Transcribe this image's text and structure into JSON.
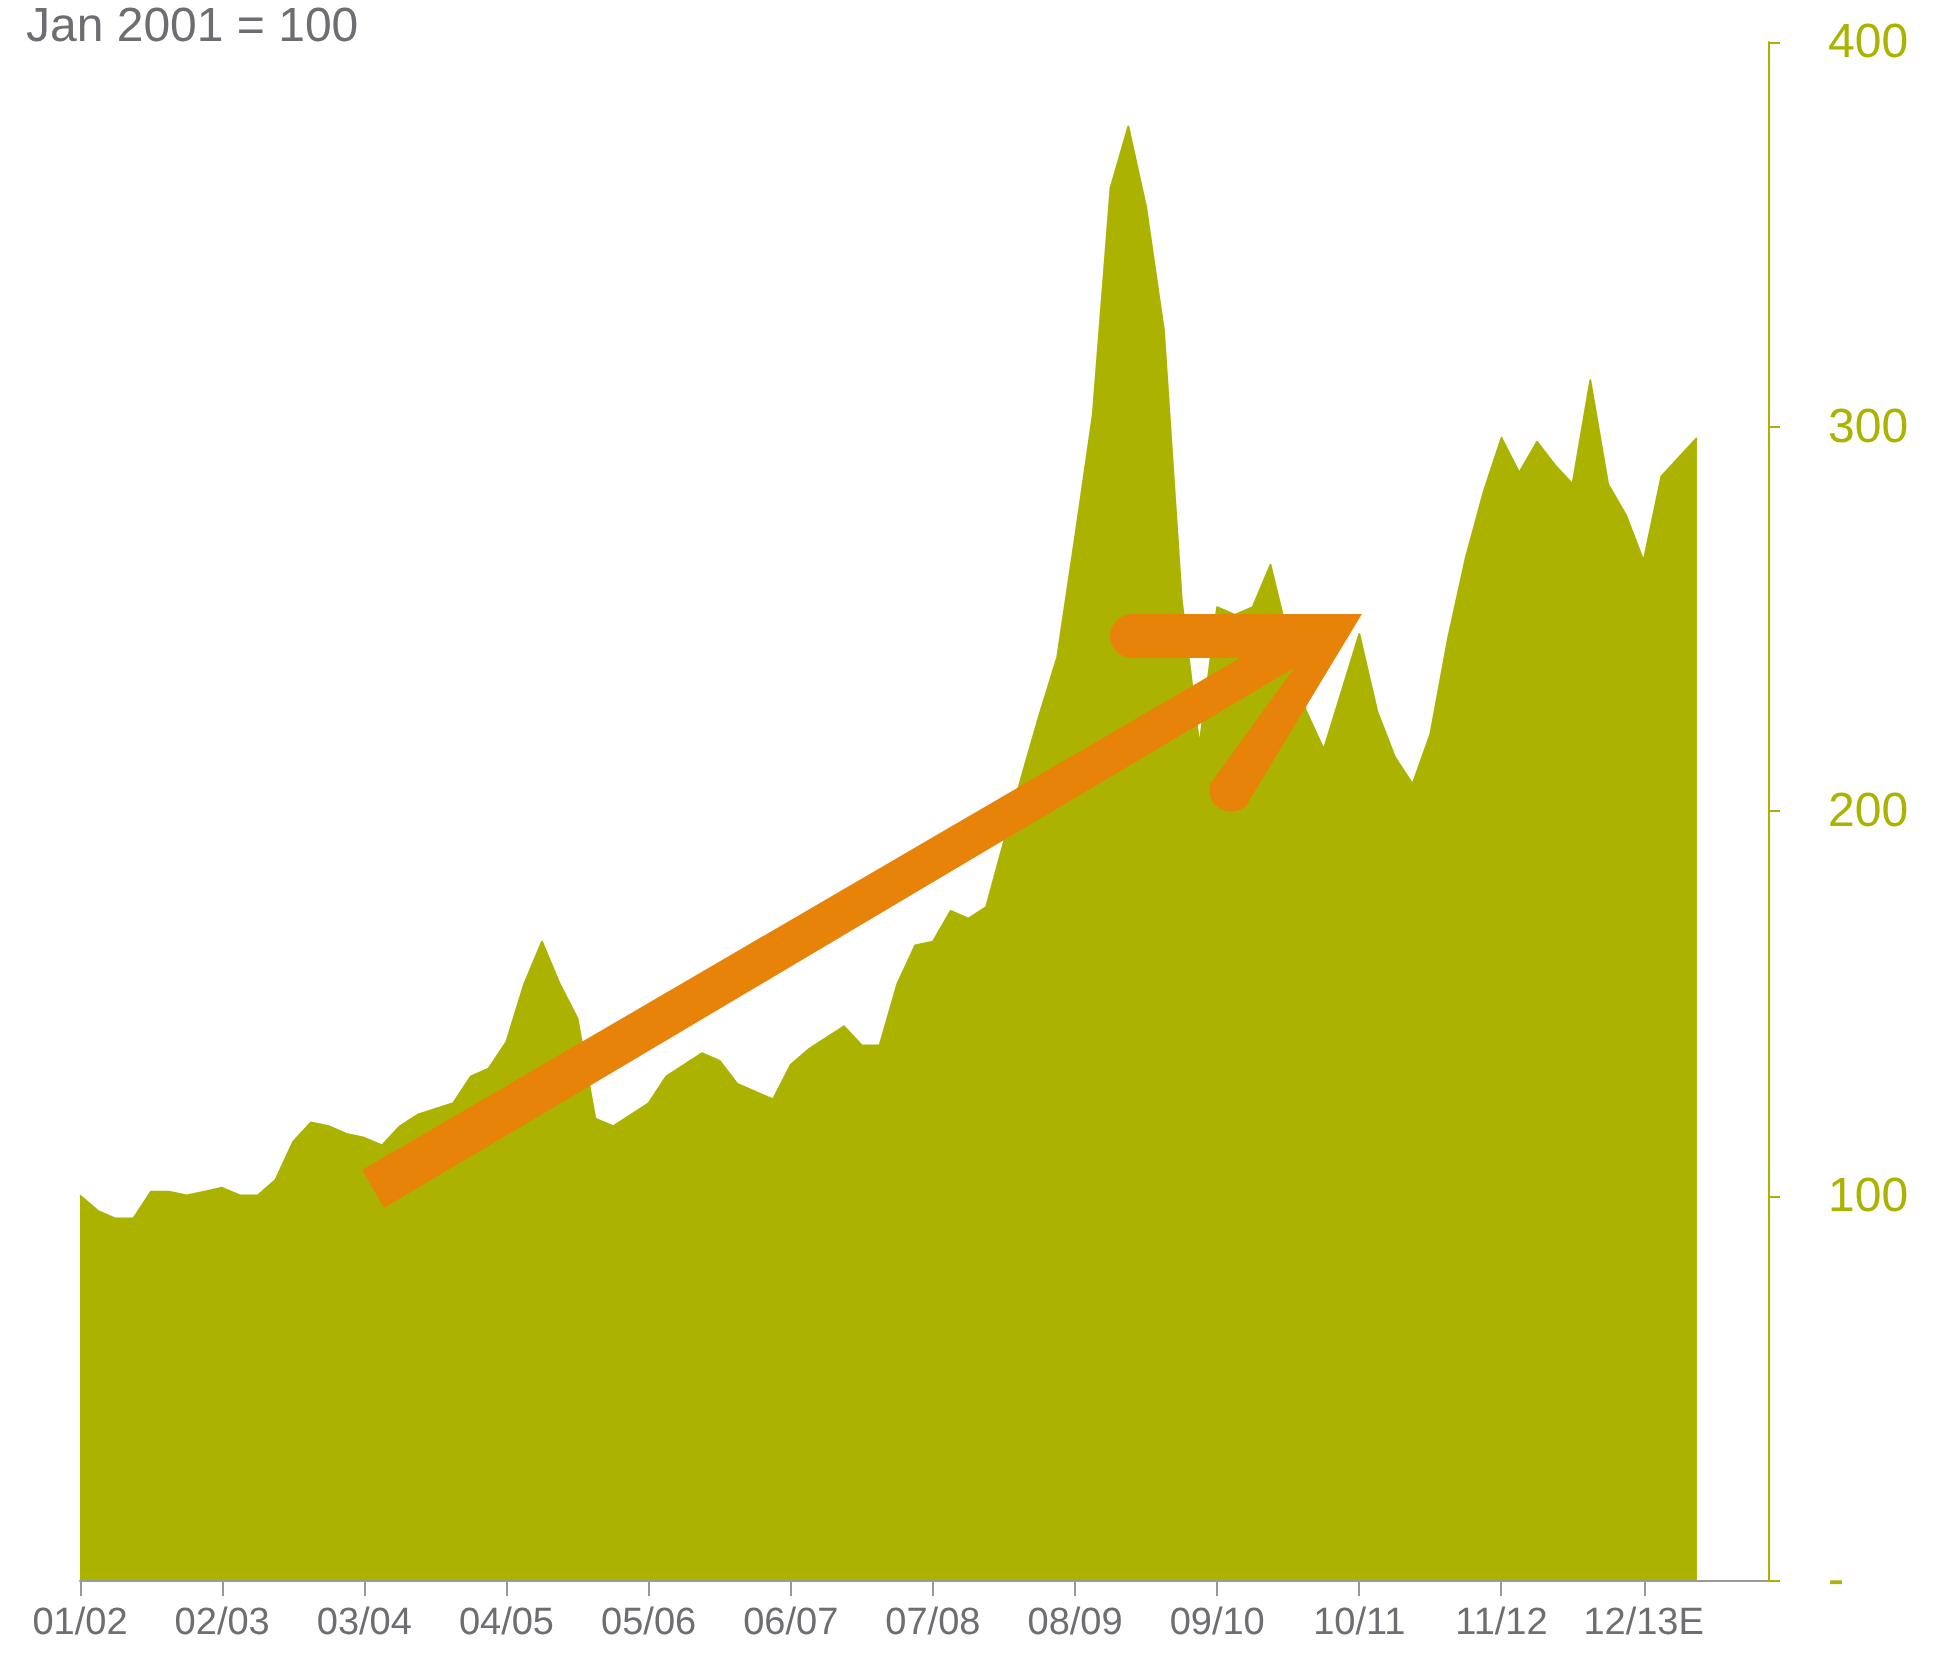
{
  "chart_data": {
    "type": "area",
    "title": "Jan 2001 = 100",
    "categories": [
      "01/02",
      null,
      null,
      null,
      null,
      null,
      null,
      null,
      "02/03",
      null,
      null,
      null,
      null,
      null,
      null,
      null,
      "03/04",
      null,
      null,
      null,
      null,
      null,
      null,
      null,
      "04/05",
      null,
      null,
      null,
      null,
      null,
      null,
      null,
      "05/06",
      null,
      null,
      null,
      null,
      null,
      null,
      null,
      "06/07",
      null,
      null,
      null,
      null,
      null,
      null,
      null,
      "07/08",
      null,
      null,
      null,
      null,
      null,
      null,
      null,
      "08/09",
      null,
      null,
      null,
      null,
      null,
      null,
      null,
      "09/10",
      null,
      null,
      null,
      null,
      null,
      null,
      null,
      "10/11",
      null,
      null,
      null,
      null,
      null,
      null,
      null,
      "11/12",
      null,
      null,
      null,
      null,
      null,
      null,
      null,
      "12/13E",
      null,
      null,
      null,
      null,
      null,
      null,
      null
    ],
    "series": [
      {
        "color": "#abb300",
        "values": [
          100,
          96,
          94,
          94,
          101,
          101,
          100,
          101,
          102,
          100,
          100,
          104,
          114,
          119,
          118,
          116,
          115,
          113,
          118,
          121,
          null,
          124,
          131,
          133,
          140,
          155,
          166,
          155,
          146,
          120,
          118,
          121,
          124,
          131,
          134,
          137,
          135,
          129,
          127,
          125,
          134,
          138,
          141,
          144,
          139,
          139,
          155,
          165,
          166,
          174,
          172,
          175,
          null,
          209,
          225,
          240,
          271,
          303,
          362,
          378,
          357,
          325,
          255,
          217,
          253,
          251,
          253,
          264,
          null,
          226,
          216,
          null,
          246,
          226,
          214,
          207,
          220,
          245,
          266,
          283,
          297,
          288,
          296,
          290,
          285,
          312,
          285,
          277,
          265,
          287,
          292,
          297,
          null,
          null,
          null,
          null
        ]
      }
    ],
    "ylim": [
      0,
      400
    ],
    "yticks": [
      {
        "value": 0,
        "label": "-"
      },
      100,
      200,
      300,
      400
    ]
  }
}
